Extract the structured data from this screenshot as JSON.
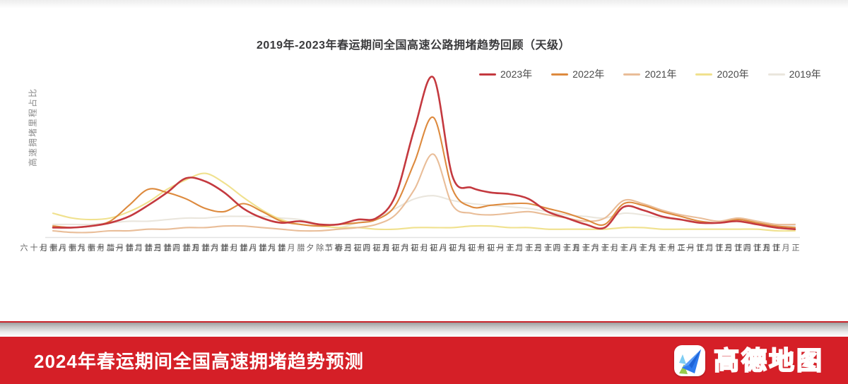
{
  "chart_data": {
    "type": "line",
    "title": "2019年-2023年春运期间全国高速公路拥堵趋势回顾（天级）",
    "xlabel": "",
    "ylabel": "高速拥堵里程占比",
    "ylim": [
      0,
      100
    ],
    "grid": false,
    "legend_position": "top-right",
    "categories": [
      "腊月十六",
      "腊月十七",
      "腊月十八",
      "腊月十九",
      "腊月二十",
      "腊月廿一",
      "腊月廿二",
      "腊月廿三",
      "腊月廿四",
      "腊月廿五",
      "腊月廿六",
      "腊月廿七",
      "腊月廿八",
      "腊月廿九",
      "除夕",
      "春节",
      "正月初二",
      "正月初三",
      "正月初四",
      "正月初五",
      "正月初六",
      "正月初七",
      "正月初八",
      "正月初九",
      "正月初十",
      "正月十一",
      "正月十二",
      "正月十三",
      "正月十四",
      "正月十五",
      "正月十六",
      "正月十七",
      "正月十八",
      "正月十九",
      "正月二十",
      "正月廿一",
      "正月廿二",
      "正月廿三",
      "正月廿四",
      "正月廿五"
    ],
    "series": [
      {
        "name": "2023年",
        "color": "#c4393f",
        "values": [
          6,
          6,
          7,
          9,
          13,
          20,
          28,
          37,
          35,
          28,
          18,
          12,
          9,
          10,
          8,
          8,
          11,
          12,
          26,
          68,
          100,
          38,
          31,
          28,
          27,
          24,
          16,
          12,
          8,
          6,
          19,
          17,
          13,
          11,
          9,
          9,
          10,
          8,
          6,
          5
        ]
      },
      {
        "name": "2022年",
        "color": "#dd8a3e",
        "values": [
          7,
          6,
          7,
          10,
          20,
          30,
          28,
          24,
          18,
          16,
          21,
          16,
          10,
          8,
          7,
          8,
          9,
          11,
          20,
          47,
          75,
          30,
          19,
          20,
          21,
          21,
          18,
          15,
          11,
          8,
          21,
          20,
          16,
          13,
          10,
          9,
          11,
          9,
          7,
          6
        ]
      },
      {
        "name": "2021年",
        "color": "#e9bd98",
        "values": [
          4,
          3,
          3,
          4,
          4,
          5,
          5,
          6,
          6,
          7,
          7,
          6,
          5,
          4,
          4,
          5,
          6,
          8,
          14,
          30,
          52,
          20,
          15,
          14,
          15,
          16,
          14,
          12,
          10,
          12,
          23,
          21,
          17,
          14,
          12,
          10,
          12,
          10,
          8,
          8
        ]
      },
      {
        "name": "2020年",
        "color": "#f0e18e",
        "values": [
          15,
          12,
          11,
          12,
          16,
          22,
          30,
          36,
          40,
          34,
          25,
          17,
          11,
          8,
          7,
          6,
          6,
          5,
          5,
          6,
          6,
          6,
          7,
          7,
          6,
          6,
          5,
          5,
          5,
          5,
          6,
          6,
          5,
          5,
          5,
          5,
          5,
          5,
          4,
          4
        ]
      },
      {
        "name": "2019年",
        "color": "#eae6dd",
        "values": [
          8,
          8,
          8,
          9,
          10,
          10,
          11,
          12,
          12,
          13,
          13,
          13,
          12,
          11,
          8,
          6,
          9,
          12,
          18,
          24,
          26,
          23,
          21,
          20,
          19,
          18,
          16,
          14,
          13,
          12,
          15,
          14,
          12,
          11,
          10,
          9,
          10,
          8,
          7,
          7
        ]
      }
    ]
  },
  "banner": {
    "title": "2024年春运期间全国高速拥堵趋势预测",
    "logo_text": "高德地图",
    "background_color": "#d51f27"
  }
}
